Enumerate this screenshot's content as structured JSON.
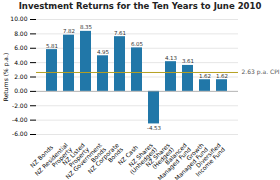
{
  "chart_data": {
    "type": "bar",
    "title": "Investment Returns for the Ten Years to June 2010",
    "ylabel": "Returns (% p.a.)",
    "categories": [
      "NZ Bonds",
      "NZ Residential\nProperty",
      "NZ Listed\nProperty",
      "NZ Government\nBonds",
      "NZ Corporate\nBonds",
      "NZ Cash",
      "NZ Shares\n(Unhedged)",
      "NZ Shares\n(Hedged)",
      "Balanced\nManaged Fund",
      "Growth\nManaged Fund",
      "Diversified\nIncome Fund"
    ],
    "values": [
      5.81,
      7.82,
      8.35,
      4.95,
      7.61,
      6.05,
      -4.53,
      4.13,
      3.61,
      1.62,
      1.62
    ],
    "color": "#2177a8",
    "data_labels": true,
    "reference_line": {
      "value": 2.63,
      "label": "2.63 p.a. CPI",
      "color": "#b5a020"
    },
    "ylim": [
      -6.0,
      10.0
    ],
    "yticks": [
      {
        "value": -6.0,
        "label": "-6.00"
      },
      {
        "value": -4.0,
        "label": "-4.00"
      },
      {
        "value": -2.0,
        "label": "-2.00"
      },
      {
        "value": 0.0,
        "label": "0.00"
      },
      {
        "value": 2.0,
        "label": "2.00"
      },
      {
        "value": 4.0,
        "label": "4.00"
      },
      {
        "value": 6.0,
        "label": "6.00"
      },
      {
        "value": 8.0,
        "label": "8.00"
      },
      {
        "value": 10.0,
        "label": "10.00"
      }
    ],
    "grid": true
  }
}
